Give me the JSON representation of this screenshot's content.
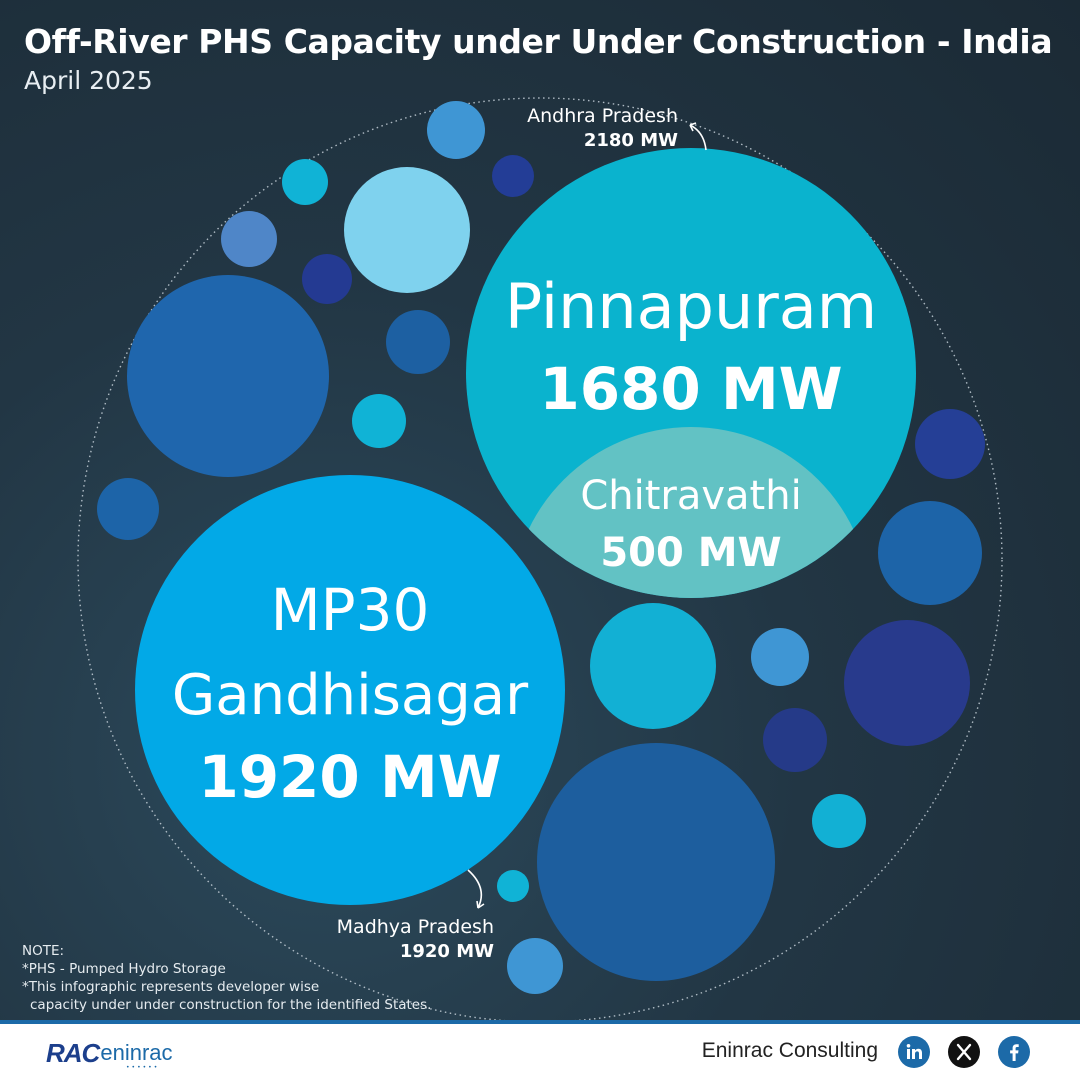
{
  "header": {
    "title": "Off-River PHS Capacity under Under Construction - India",
    "subtitle": "April 2025"
  },
  "chart_data": {
    "type": "bubble",
    "title": "Off-River PHS Capacity under Under Construction - India",
    "unit": "MW",
    "groups": [
      {
        "state": "Andhra Pradesh",
        "total_label": "2180 MW",
        "total": 2180,
        "projects": [
          {
            "name": "Pinnapuram",
            "value": 1680,
            "value_label": "1680 MW"
          },
          {
            "name": "Chitravathi",
            "value": 500,
            "value_label": "500 MW"
          }
        ]
      },
      {
        "state": "Madhya Pradesh",
        "total_label": "1920 MW",
        "total": 1920,
        "projects": [
          {
            "name_lines": [
              "MP30",
              "Gandhisagar"
            ],
            "value": 1920,
            "value_label": "1920 MW"
          }
        ]
      }
    ]
  },
  "notes": {
    "heading": "NOTE:",
    "line1": "*PHS - Pumped Hydro Storage",
    "line2": "*This infographic represents developer wise",
    "line3": "capacity under under construction for the identified States."
  },
  "footer": {
    "logo_rac": "RAC",
    "logo_eninrac": "eninrac",
    "company": "Eninrac Consulting",
    "social": [
      "linkedin-icon",
      "x-icon",
      "facebook-icon"
    ]
  },
  "colors": {
    "background": "#1f303d",
    "andhra_pradesh": "#0ab3ce",
    "chitravathi": "#62c2c4",
    "madhya_pradesh": "#02a9e7",
    "footer_accent": "#1c6aa8"
  }
}
